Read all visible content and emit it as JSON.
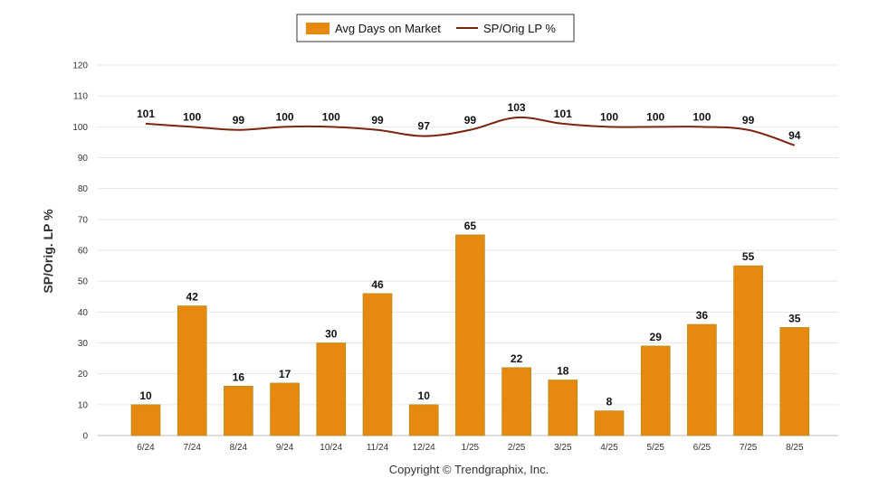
{
  "chart_data": {
    "type": "bar",
    "categories": [
      "6/24",
      "7/24",
      "8/24",
      "9/24",
      "10/24",
      "11/24",
      "12/24",
      "1/25",
      "2/25",
      "3/25",
      "4/25",
      "5/25",
      "6/25",
      "7/25",
      "8/25"
    ],
    "series": [
      {
        "name": "Avg Days on Market",
        "type": "bar",
        "color": "#E8890F",
        "values": [
          10,
          42,
          16,
          17,
          30,
          46,
          10,
          65,
          22,
          18,
          8,
          29,
          36,
          55,
          35
        ]
      },
      {
        "name": "SP/Orig LP %",
        "type": "line",
        "color": "#7B2410",
        "values": [
          101,
          100,
          99,
          100,
          100,
          99,
          97,
          99,
          103,
          101,
          100,
          100,
          100,
          99,
          94
        ]
      }
    ],
    "ylabel": "SP/Orig. LP %",
    "ylim": [
      0,
      120
    ],
    "yticks": [
      0,
      10,
      20,
      30,
      40,
      50,
      60,
      70,
      80,
      90,
      100,
      110,
      120
    ],
    "grid": true,
    "legend": "top-center"
  },
  "footer": {
    "copyright": "Copyright © Trendgraphix, Inc."
  }
}
